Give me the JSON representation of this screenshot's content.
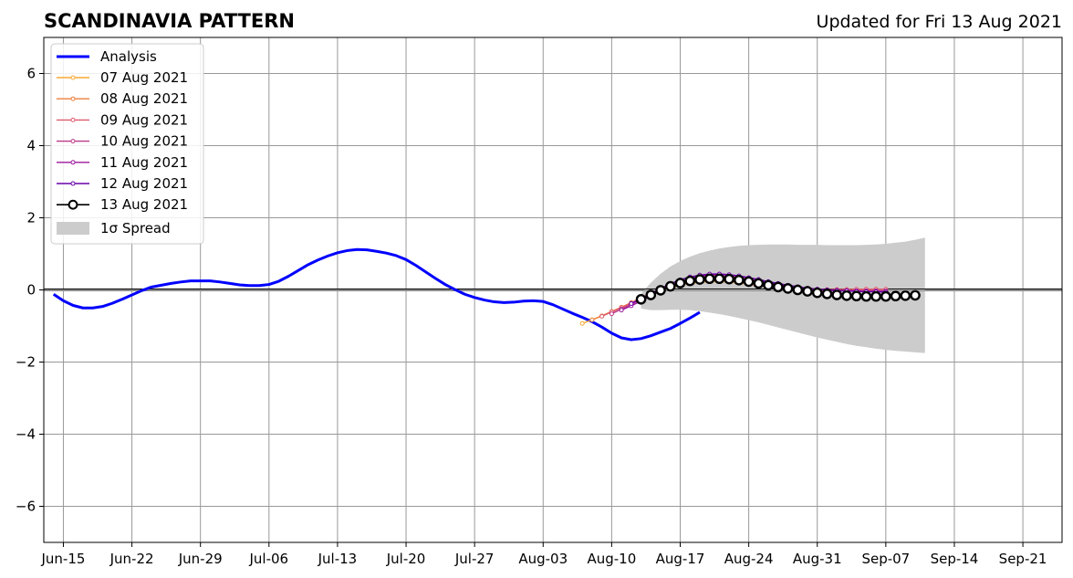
{
  "chart_data": {
    "type": "line",
    "title": "SCANDINAVIA PATTERN",
    "subtitle": "Updated for Fri 13 Aug 2021",
    "xlabel": "",
    "ylabel": "",
    "x_range": [
      "2021-06-13",
      "2021-09-25"
    ],
    "ylim": [
      -7,
      7
    ],
    "yticks": [
      -6,
      -4,
      -2,
      0,
      2,
      4,
      6
    ],
    "ytick_labels": [
      "−6",
      "−4",
      "−2",
      "0",
      "2",
      "4",
      "6"
    ],
    "xticks": [
      "2021-06-15",
      "2021-06-22",
      "2021-06-29",
      "2021-07-06",
      "2021-07-13",
      "2021-07-20",
      "2021-07-27",
      "2021-08-03",
      "2021-08-10",
      "2021-08-17",
      "2021-08-24",
      "2021-08-31",
      "2021-09-07",
      "2021-09-14",
      "2021-09-21"
    ],
    "xtick_labels": [
      "Jun-15",
      "Jun-22",
      "Jun-29",
      "Jul-06",
      "Jul-13",
      "Jul-20",
      "Jul-27",
      "Aug-03",
      "Aug-10",
      "Aug-17",
      "Aug-24",
      "Aug-31",
      "Sep-07",
      "Sep-14",
      "Sep-21"
    ],
    "grid": true,
    "legend_position": "top-left",
    "analysis": {
      "name": "Analysis",
      "color": "#0000ff",
      "start_date": "2021-06-14",
      "values": [
        -0.12,
        -0.3,
        -0.43,
        -0.5,
        -0.5,
        -0.46,
        -0.37,
        -0.26,
        -0.14,
        -0.02,
        0.08,
        0.13,
        0.18,
        0.22,
        0.25,
        0.25,
        0.25,
        0.22,
        0.18,
        0.14,
        0.12,
        0.12,
        0.15,
        0.24,
        0.38,
        0.54,
        0.7,
        0.83,
        0.94,
        1.03,
        1.09,
        1.12,
        1.11,
        1.07,
        1.02,
        0.95,
        0.84,
        0.68,
        0.5,
        0.32,
        0.15,
        0.01,
        -0.12,
        -0.21,
        -0.28,
        -0.33,
        -0.35,
        -0.34,
        -0.31,
        -0.3,
        -0.32,
        -0.41,
        -0.53,
        -0.65,
        -0.76,
        -0.88,
        -1.03,
        -1.2,
        -1.33,
        -1.38,
        -1.35,
        -1.27,
        -1.17,
        -1.07,
        -0.93,
        -0.78,
        -0.62
      ]
    },
    "forecasts": [
      {
        "name": "07 Aug 2021",
        "color": "#f8a830",
        "start_date": "2021-08-07",
        "values": [
          -0.93,
          -0.83,
          -0.72,
          -0.6,
          -0.48,
          -0.36,
          -0.24,
          -0.13,
          -0.03,
          0.06,
          0.13,
          0.18,
          0.21,
          0.23,
          0.23,
          0.22,
          0.19,
          0.16,
          0.12,
          0.08,
          0.05,
          0.02,
          0.0,
          -0.01,
          -0.02,
          -0.02,
          -0.01,
          0.0,
          0.01,
          0.02,
          0.02
        ]
      },
      {
        "name": "08 Aug 2021",
        "color": "#ef7f3c",
        "start_date": "2021-08-08",
        "values": [
          -0.83,
          -0.72,
          -0.6,
          -0.48,
          -0.35,
          -0.22,
          -0.09,
          0.03,
          0.13,
          0.21,
          0.26,
          0.29,
          0.29,
          0.28,
          0.25,
          0.21,
          0.17,
          0.13,
          0.09,
          0.06,
          0.03,
          0.01,
          0.0,
          0.0,
          0.0,
          0.01,
          0.01,
          0.01,
          0.01,
          0.01
        ]
      },
      {
        "name": "09 Aug 2021",
        "color": "#dd5a6d",
        "start_date": "2021-08-09",
        "values": [
          -0.73,
          -0.61,
          -0.49,
          -0.36,
          -0.23,
          -0.1,
          0.03,
          0.14,
          0.23,
          0.3,
          0.34,
          0.35,
          0.34,
          0.31,
          0.27,
          0.22,
          0.17,
          0.12,
          0.08,
          0.05,
          0.03,
          0.02,
          0.01,
          0.01,
          0.01,
          0.01,
          0.02,
          0.02,
          0.02,
          0.02
        ]
      },
      {
        "name": "10 Aug 2021",
        "color": "#bd3786",
        "start_date": "2021-08-10",
        "values": [
          -0.66,
          -0.53,
          -0.4,
          -0.27,
          -0.14,
          -0.01,
          0.11,
          0.22,
          0.31,
          0.37,
          0.4,
          0.4,
          0.38,
          0.34,
          0.29,
          0.23,
          0.17,
          0.12,
          0.08,
          0.05,
          0.02,
          0.0,
          -0.01,
          -0.02,
          -0.02,
          -0.02,
          -0.02,
          -0.02,
          -0.02
        ]
      },
      {
        "name": "11 Aug 2021",
        "color": "#9c179e",
        "start_date": "2021-08-11",
        "values": [
          -0.56,
          -0.44,
          -0.31,
          -0.17,
          -0.03,
          0.1,
          0.22,
          0.32,
          0.39,
          0.43,
          0.44,
          0.42,
          0.38,
          0.33,
          0.27,
          0.21,
          0.16,
          0.11,
          0.07,
          0.04,
          0.02,
          0.0,
          -0.01,
          -0.02,
          -0.03,
          -0.04,
          -0.04,
          -0.05
        ]
      },
      {
        "name": "12 Aug 2021",
        "color": "#6a00a8",
        "start_date": "2021-08-12",
        "values": [
          -0.38,
          -0.24,
          -0.1,
          0.04,
          0.17,
          0.28,
          0.36,
          0.41,
          0.44,
          0.44,
          0.42,
          0.39,
          0.34,
          0.29,
          0.23,
          0.18,
          0.13,
          0.09,
          0.05,
          0.02,
          0.0,
          -0.02,
          -0.03,
          -0.04,
          -0.05,
          -0.05,
          -0.06
        ]
      },
      {
        "name": "13 Aug 2021",
        "color": "#000000",
        "start_date": "2021-08-13",
        "values": [
          -0.26,
          -0.14,
          -0.01,
          0.1,
          0.19,
          0.25,
          0.29,
          0.31,
          0.31,
          0.3,
          0.27,
          0.23,
          0.18,
          0.13,
          0.08,
          0.04,
          0.0,
          -0.04,
          -0.08,
          -0.11,
          -0.14,
          -0.16,
          -0.17,
          -0.18,
          -0.18,
          -0.18,
          -0.17,
          -0.16,
          -0.15
        ]
      }
    ],
    "spread": {
      "name": "1σ Spread",
      "color": "#cccccc",
      "start_date": "2021-08-13",
      "upper": [
        -0.1,
        0.2,
        0.45,
        0.65,
        0.8,
        0.92,
        1.02,
        1.09,
        1.15,
        1.19,
        1.22,
        1.24,
        1.25,
        1.26,
        1.26,
        1.26,
        1.25,
        1.25,
        1.25,
        1.24,
        1.24,
        1.24,
        1.24,
        1.25,
        1.26,
        1.28,
        1.31,
        1.34,
        1.39,
        1.45
      ],
      "lower": [
        -0.52,
        -0.56,
        -0.56,
        -0.55,
        -0.55,
        -0.56,
        -0.59,
        -0.63,
        -0.67,
        -0.72,
        -0.78,
        -0.84,
        -0.9,
        -0.97,
        -1.04,
        -1.11,
        -1.18,
        -1.25,
        -1.32,
        -1.38,
        -1.44,
        -1.5,
        -1.55,
        -1.59,
        -1.63,
        -1.66,
        -1.69,
        -1.71,
        -1.73,
        -1.75
      ]
    }
  }
}
